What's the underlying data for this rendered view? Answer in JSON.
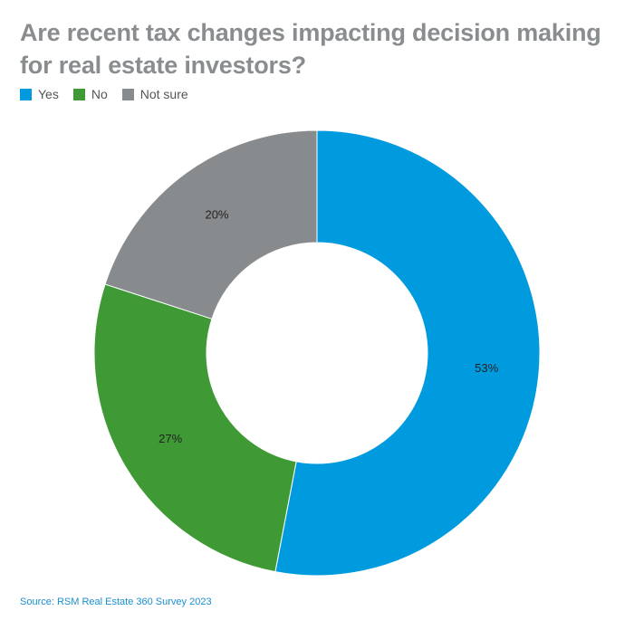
{
  "chart_data": {
    "type": "pie",
    "variant": "donut",
    "title": "Are recent tax changes impacting decision making for real estate investors?",
    "categories": [
      "Yes",
      "No",
      "Not sure"
    ],
    "values": [
      53,
      27,
      20
    ],
    "labels": [
      "53%",
      "27%",
      "20%"
    ],
    "colors": [
      "#009adf",
      "#3f9a35",
      "#888b8d"
    ],
    "legend": "top-left",
    "start": "12 o'clock, clockwise"
  },
  "source": "Source: RSM Real Estate 360 Survey 2023"
}
